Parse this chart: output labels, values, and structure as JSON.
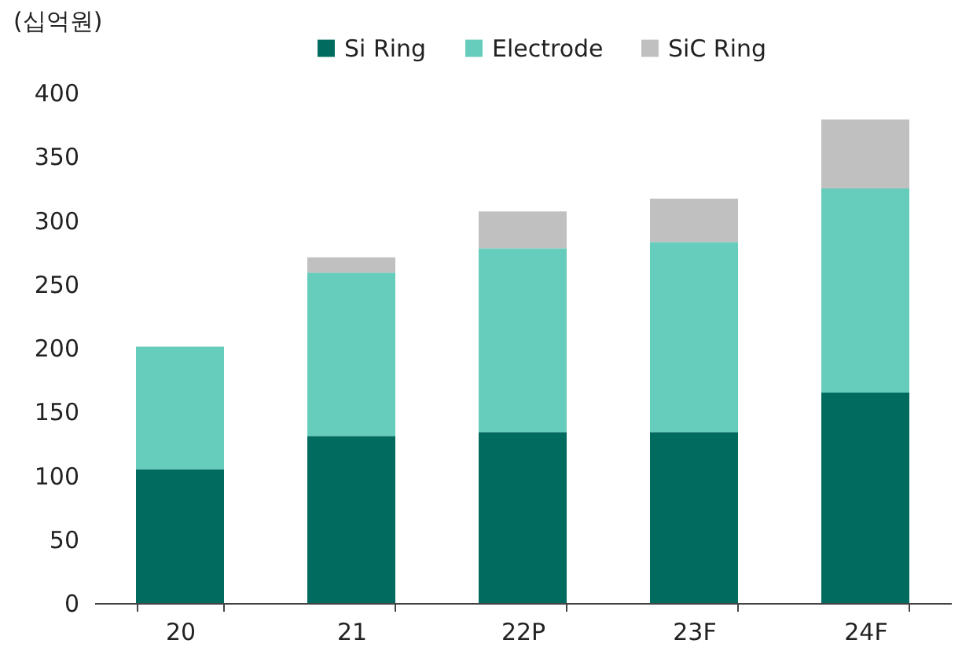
{
  "chart_data": {
    "type": "bar",
    "stacked": true,
    "ylabel": "(십억원)",
    "categories": [
      "20",
      "21",
      "22P",
      "23F",
      "24F"
    ],
    "series": [
      {
        "name": "Si Ring",
        "color": "#006b5e",
        "values": [
          105,
          131,
          134,
          134,
          165
        ]
      },
      {
        "name": "Electrode",
        "color": "#66ccbb",
        "values": [
          96,
          128,
          144,
          149,
          160
        ]
      },
      {
        "name": "SiC Ring",
        "color": "#c0c0c0",
        "values": [
          0,
          12,
          29,
          34,
          54
        ]
      }
    ],
    "ylim": [
      0,
      400
    ],
    "yticks": [
      0,
      50,
      100,
      150,
      200,
      250,
      300,
      350,
      400
    ],
    "grid": false,
    "legend": "top"
  }
}
